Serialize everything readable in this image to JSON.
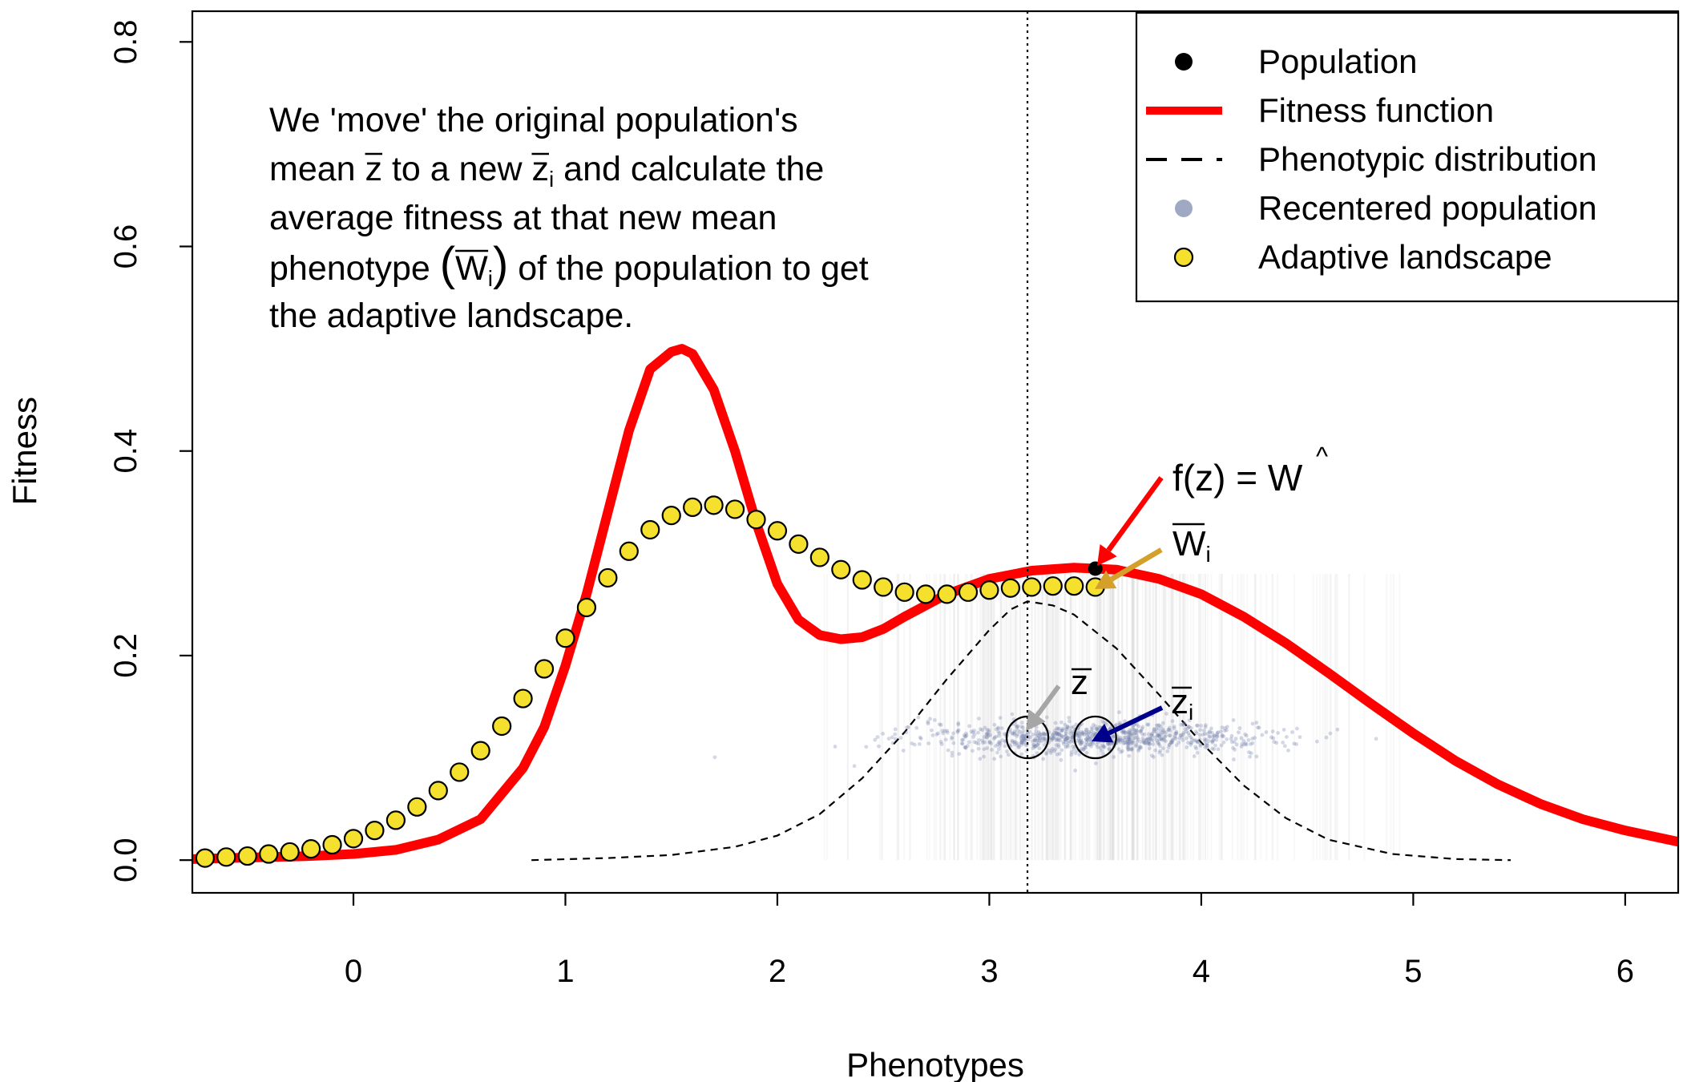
{
  "chart_data": {
    "type": "line",
    "xlabel": "Phenotypes",
    "ylabel": "Fitness",
    "xlim": [
      -0.76,
      6.25
    ],
    "ylim": [
      -0.032,
      0.83
    ],
    "x_ticks": [
      0,
      1,
      2,
      3,
      4,
      5,
      6
    ],
    "y_ticks": [
      0.0,
      0.2,
      0.4,
      0.6,
      0.8
    ],
    "x_tick_labels": [
      "0",
      "1",
      "2",
      "3",
      "4",
      "5",
      "6"
    ],
    "y_tick_labels": [
      "0.0",
      "0.2",
      "0.4",
      "0.6",
      "0.8"
    ],
    "grid": false,
    "legend_position": "top-right",
    "legend": [
      {
        "label": "Population",
        "symbol": "point",
        "color": "#000000"
      },
      {
        "label": "Fitness function",
        "symbol": "line",
        "color": "#ff0000"
      },
      {
        "label": "Phenotypic distribution",
        "symbol": "dashed-line",
        "color": "#000000"
      },
      {
        "label": "Recentered population",
        "symbol": "point",
        "color": "#8e9ab8"
      },
      {
        "label": "Adaptive landscape",
        "symbol": "point",
        "color": "#f5e02e"
      }
    ],
    "annotation_lines": [
      "We 'move' the original population's",
      "mean z to a new z and calculate the",
      "average fitness at that new mean",
      "phenotype (W ) of the population to get",
      "the adaptive landscape."
    ],
    "annotation_subscript": "i",
    "labels": {
      "fz_prefix": "f(z) = ",
      "w_hat": "W",
      "w_bar": "W",
      "z_bar": "z",
      "z_bar_i": "z",
      "subscript": "i"
    },
    "original_mean": 3.18,
    "recentered_mean": 3.5,
    "population_y": 0.12,
    "series": [
      {
        "name": "Fitness function",
        "color": "#ff0000",
        "x": [
          -0.76,
          -0.6,
          -0.4,
          -0.2,
          0.0,
          0.2,
          0.4,
          0.6,
          0.8,
          0.9,
          1.0,
          1.1,
          1.2,
          1.3,
          1.4,
          1.5,
          1.55,
          1.6,
          1.7,
          1.8,
          1.9,
          2.0,
          2.1,
          2.2,
          2.3,
          2.4,
          2.5,
          2.6,
          2.8,
          3.0,
          3.2,
          3.4,
          3.6,
          3.8,
          4.0,
          4.2,
          4.4,
          4.6,
          4.8,
          5.0,
          5.2,
          5.4,
          5.6,
          5.8,
          6.0,
          6.25
        ],
        "values": [
          0.001,
          0.002,
          0.003,
          0.004,
          0.006,
          0.01,
          0.02,
          0.04,
          0.09,
          0.13,
          0.19,
          0.26,
          0.34,
          0.42,
          0.48,
          0.497,
          0.5,
          0.495,
          0.46,
          0.4,
          0.33,
          0.27,
          0.235,
          0.22,
          0.216,
          0.218,
          0.226,
          0.238,
          0.26,
          0.275,
          0.283,
          0.286,
          0.284,
          0.275,
          0.26,
          0.238,
          0.212,
          0.183,
          0.153,
          0.124,
          0.097,
          0.074,
          0.055,
          0.04,
          0.029,
          0.018
        ]
      },
      {
        "name": "Phenotypic distribution",
        "color": "#000000",
        "x": [
          0.84,
          1.2,
          1.5,
          1.8,
          2.0,
          2.2,
          2.4,
          2.6,
          2.8,
          3.0,
          3.1,
          3.18,
          3.3,
          3.4,
          3.6,
          3.8,
          4.0,
          4.2,
          4.4,
          4.6,
          4.9,
          5.2,
          5.46
        ],
        "values": [
          0.0,
          0.002,
          0.005,
          0.013,
          0.024,
          0.045,
          0.08,
          0.125,
          0.177,
          0.225,
          0.245,
          0.253,
          0.249,
          0.24,
          0.207,
          0.162,
          0.115,
          0.073,
          0.041,
          0.02,
          0.006,
          0.001,
          0.0
        ]
      },
      {
        "name": "Adaptive landscape",
        "color": "#f5e02e",
        "x": [
          -0.7,
          -0.6,
          -0.5,
          -0.4,
          -0.3,
          -0.2,
          -0.1,
          0.0,
          0.1,
          0.2,
          0.3,
          0.4,
          0.5,
          0.6,
          0.7,
          0.8,
          0.9,
          1.0,
          1.1,
          1.2,
          1.3,
          1.4,
          1.5,
          1.6,
          1.7,
          1.8,
          1.9,
          2.0,
          2.1,
          2.2,
          2.3,
          2.4,
          2.5,
          2.6,
          2.7,
          2.8,
          2.9,
          3.0,
          3.1,
          3.2,
          3.3,
          3.4,
          3.5
        ],
        "values": [
          0.002,
          0.003,
          0.004,
          0.006,
          0.008,
          0.011,
          0.015,
          0.021,
          0.029,
          0.039,
          0.052,
          0.068,
          0.086,
          0.107,
          0.131,
          0.158,
          0.187,
          0.217,
          0.247,
          0.276,
          0.302,
          0.323,
          0.337,
          0.345,
          0.347,
          0.343,
          0.333,
          0.322,
          0.309,
          0.296,
          0.284,
          0.274,
          0.267,
          0.262,
          0.26,
          0.26,
          0.262,
          0.264,
          0.266,
          0.267,
          0.268,
          0.268,
          0.267
        ]
      }
    ]
  }
}
